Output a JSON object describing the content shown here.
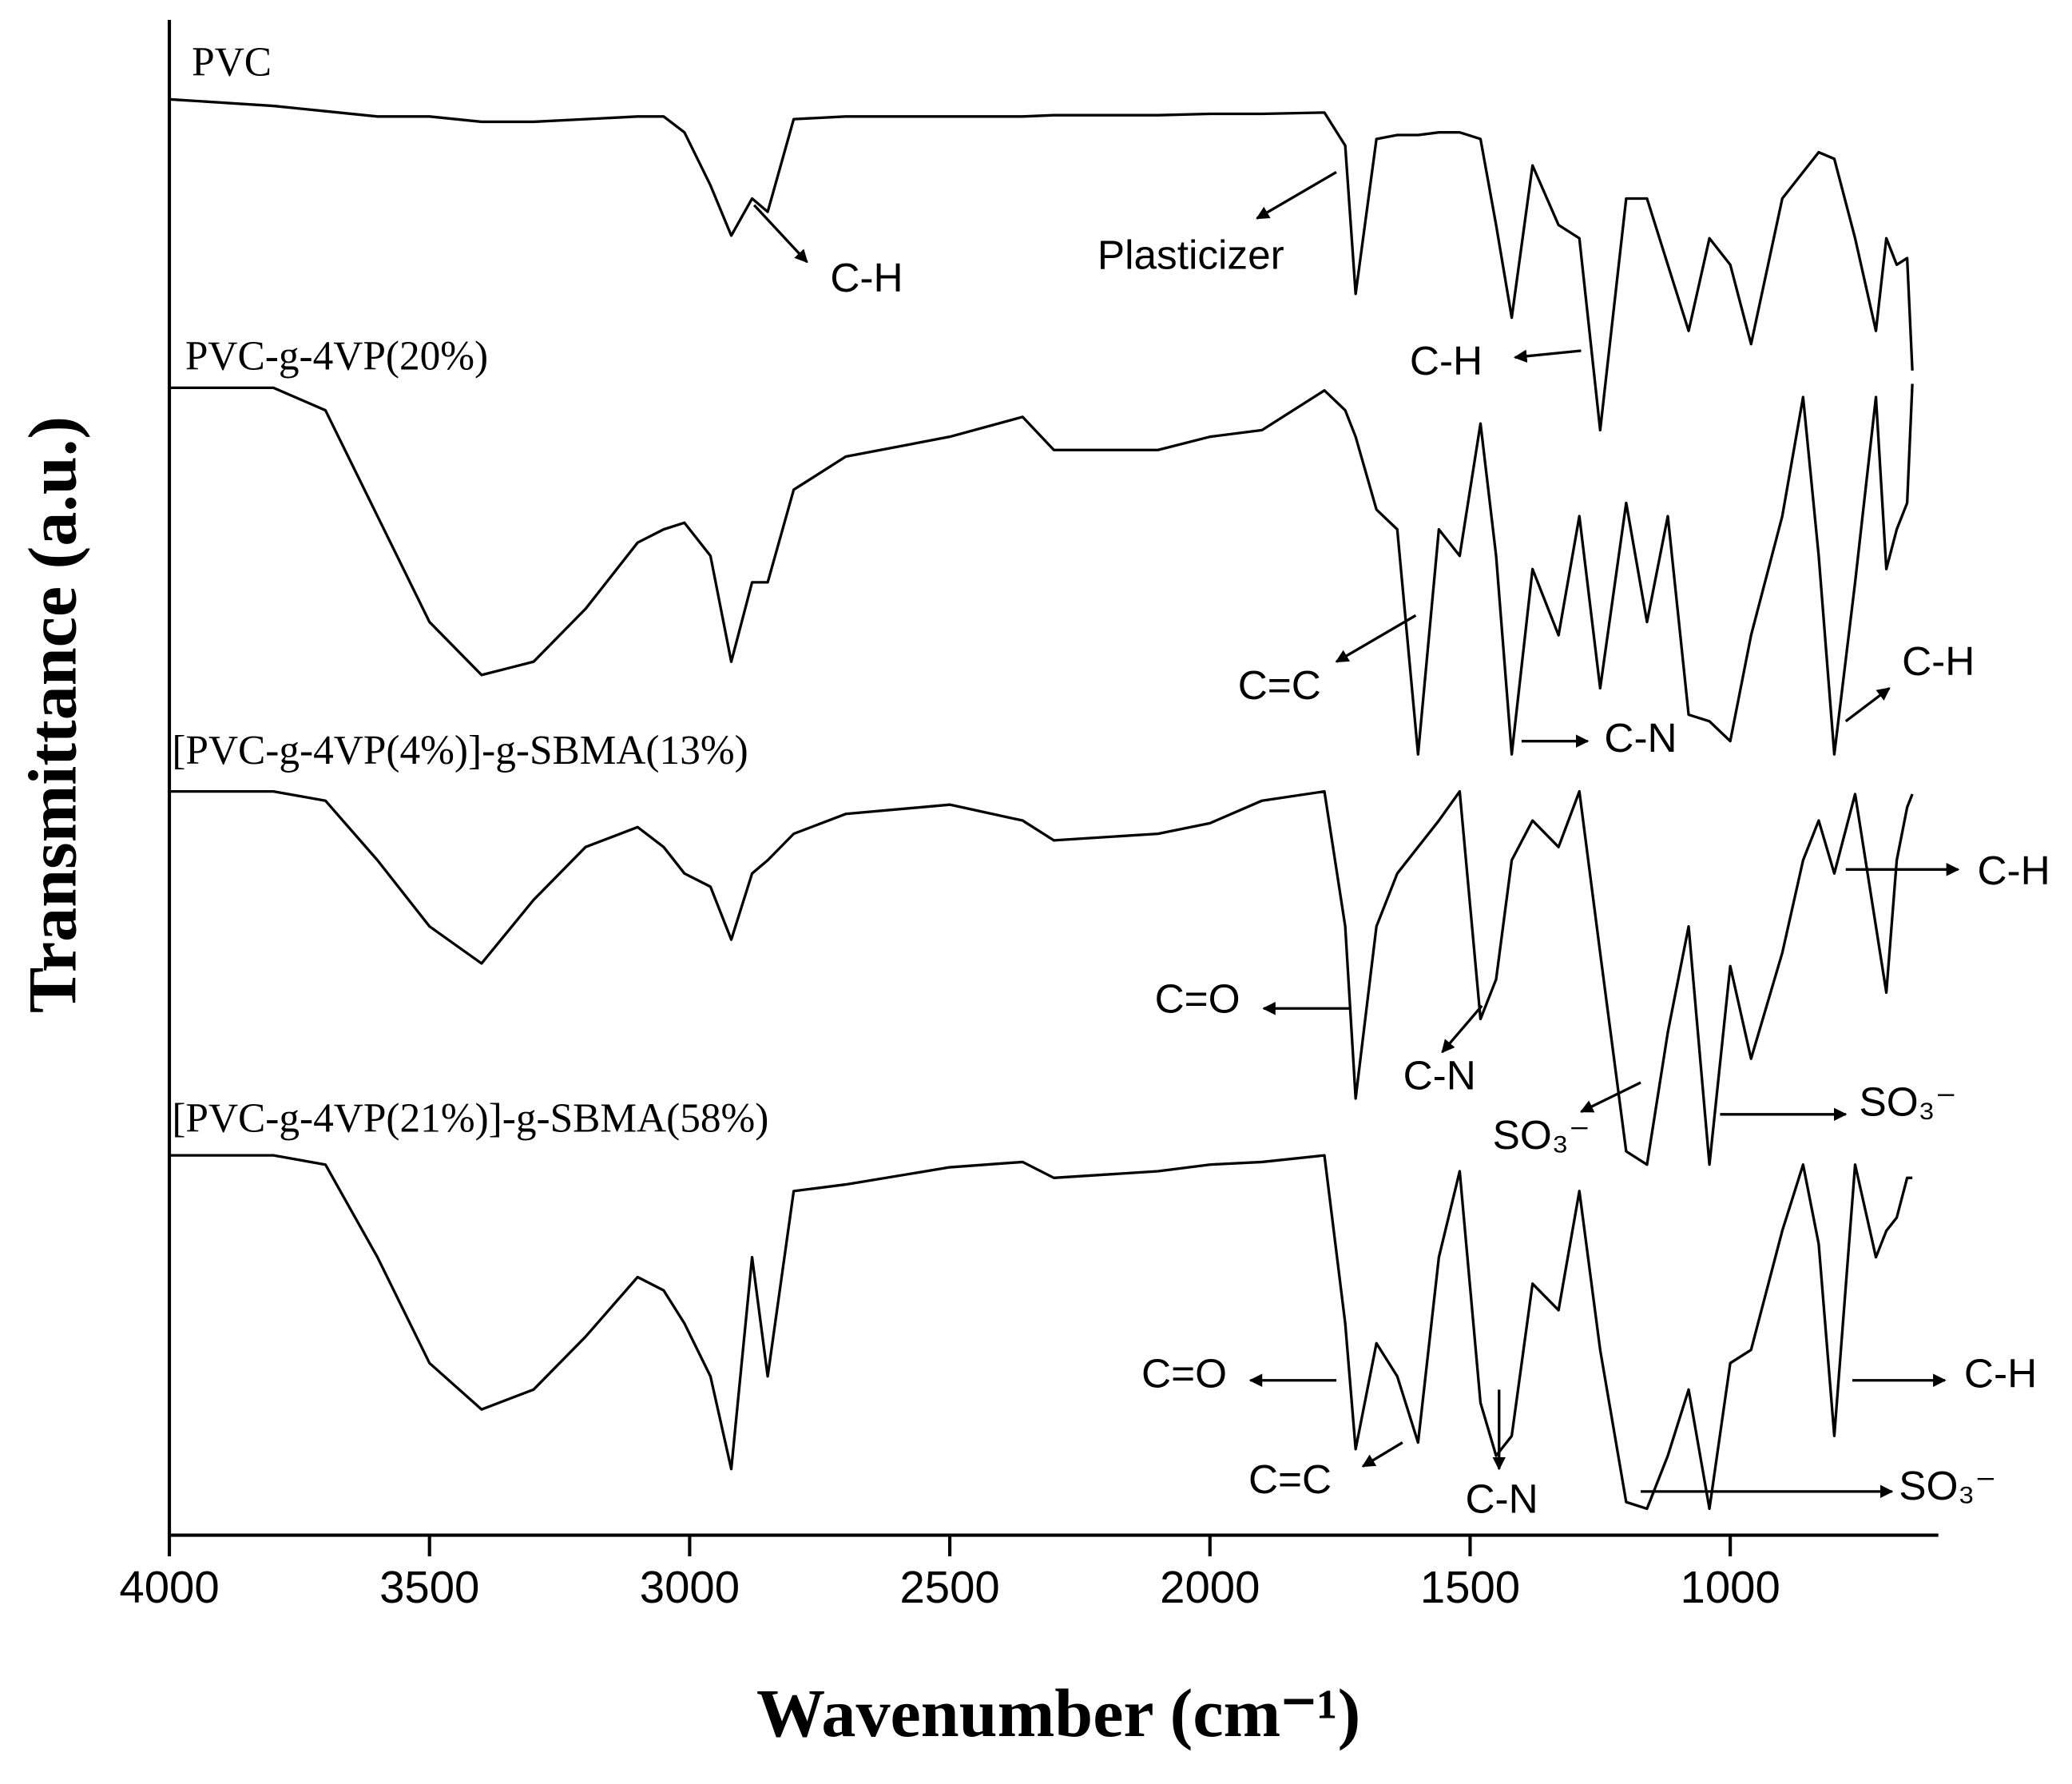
{
  "chart_data": {
    "type": "line",
    "xlabel": "Wavenumber (cm⁻¹)",
    "ylabel": "Transmittance (a.u.)",
    "x": [
      4000,
      3800,
      3700,
      3600,
      3500,
      3400,
      3300,
      3200,
      3100,
      3050,
      3010,
      2960,
      2920,
      2880,
      2850,
      2800,
      2700,
      2500,
      2360,
      2300,
      2100,
      2000,
      1900,
      1780,
      1740,
      1720,
      1680,
      1640,
      1600,
      1560,
      1520,
      1480,
      1450,
      1420,
      1380,
      1330,
      1290,
      1250,
      1200,
      1160,
      1120,
      1080,
      1040,
      1000,
      960,
      900,
      860,
      830,
      800,
      760,
      720,
      700,
      680,
      660,
      650
    ],
    "xlim": [
      4000,
      600
    ],
    "xticks": [
      4000,
      3500,
      3000,
      2500,
      2000,
      1500,
      1000
    ],
    "ylim": [
      0,
      1160
    ],
    "series": [
      {
        "name": "PVC",
        "color": "#000000",
        "values": [
          1085,
          1080,
          1076,
          1072,
          1072,
          1068,
          1068,
          1070,
          1072,
          1072,
          1060,
          1020,
          982,
          1010,
          1000,
          1070,
          1072,
          1072,
          1072,
          1073,
          1073,
          1074,
          1074,
          1075,
          1050,
          938,
          1055,
          1058,
          1058,
          1060,
          1060,
          1055,
          990,
          920,
          1035,
          990,
          980,
          835,
          1010,
          1010,
          960,
          910,
          980,
          960,
          900,
          1010,
          1030,
          1045,
          1040,
          980,
          910,
          980,
          960,
          965,
          880
        ]
      },
      {
        "name": "PVC-g-4VP(20%)",
        "color": "#000000",
        "values": [
          867,
          867,
          850,
          770,
          690,
          650,
          660,
          700,
          750,
          760,
          765,
          740,
          660,
          720,
          720,
          790,
          815,
          830,
          845,
          820,
          820,
          830,
          835,
          865,
          850,
          830,
          775,
          760,
          590,
          760,
          740,
          840,
          740,
          590,
          730,
          680,
          770,
          640,
          780,
          690,
          770,
          620,
          615,
          600,
          680,
          770,
          860,
          740,
          590,
          720,
          860,
          730,
          760,
          780,
          870
        ]
      },
      {
        "name": "[PVC-g-4VP(4%)]-g-SBMA(13%)",
        "color": "#000000",
        "values": [
          562,
          562,
          555,
          510,
          460,
          432,
          480,
          520,
          535,
          520,
          500,
          490,
          450,
          500,
          510,
          530,
          545,
          552,
          540,
          525,
          530,
          538,
          555,
          562,
          460,
          330,
          460,
          500,
          520,
          540,
          562,
          390,
          420,
          510,
          540,
          520,
          562,
          440,
          290,
          280,
          380,
          460,
          280,
          430,
          360,
          440,
          510,
          540,
          500,
          560,
          460,
          410,
          510,
          550,
          560
        ]
      },
      {
        "name": "[PVC-g-4VP(21%)]-g-SBMA(58%)",
        "color": "#000000",
        "values": [
          287,
          287,
          280,
          210,
          130,
          95,
          110,
          150,
          195,
          185,
          160,
          120,
          50,
          210,
          120,
          260,
          265,
          278,
          282,
          270,
          275,
          280,
          282,
          287,
          160,
          65,
          145,
          120,
          70,
          210,
          275,
          100,
          60,
          75,
          190,
          170,
          260,
          140,
          25,
          20,
          60,
          110,
          20,
          130,
          140,
          230,
          280,
          220,
          75,
          280,
          210,
          230,
          240,
          270,
          270
        ]
      }
    ],
    "annotations": [
      "C-H",
      "Plasticizer",
      "C-H",
      "C=C",
      "C-N",
      "C-H",
      "C=O",
      "C-N",
      "C-H",
      "SO₃⁻",
      "SO₃⁻",
      "C=O",
      "C=C",
      "C-N",
      "C-H",
      "SO₃⁻"
    ]
  }
}
